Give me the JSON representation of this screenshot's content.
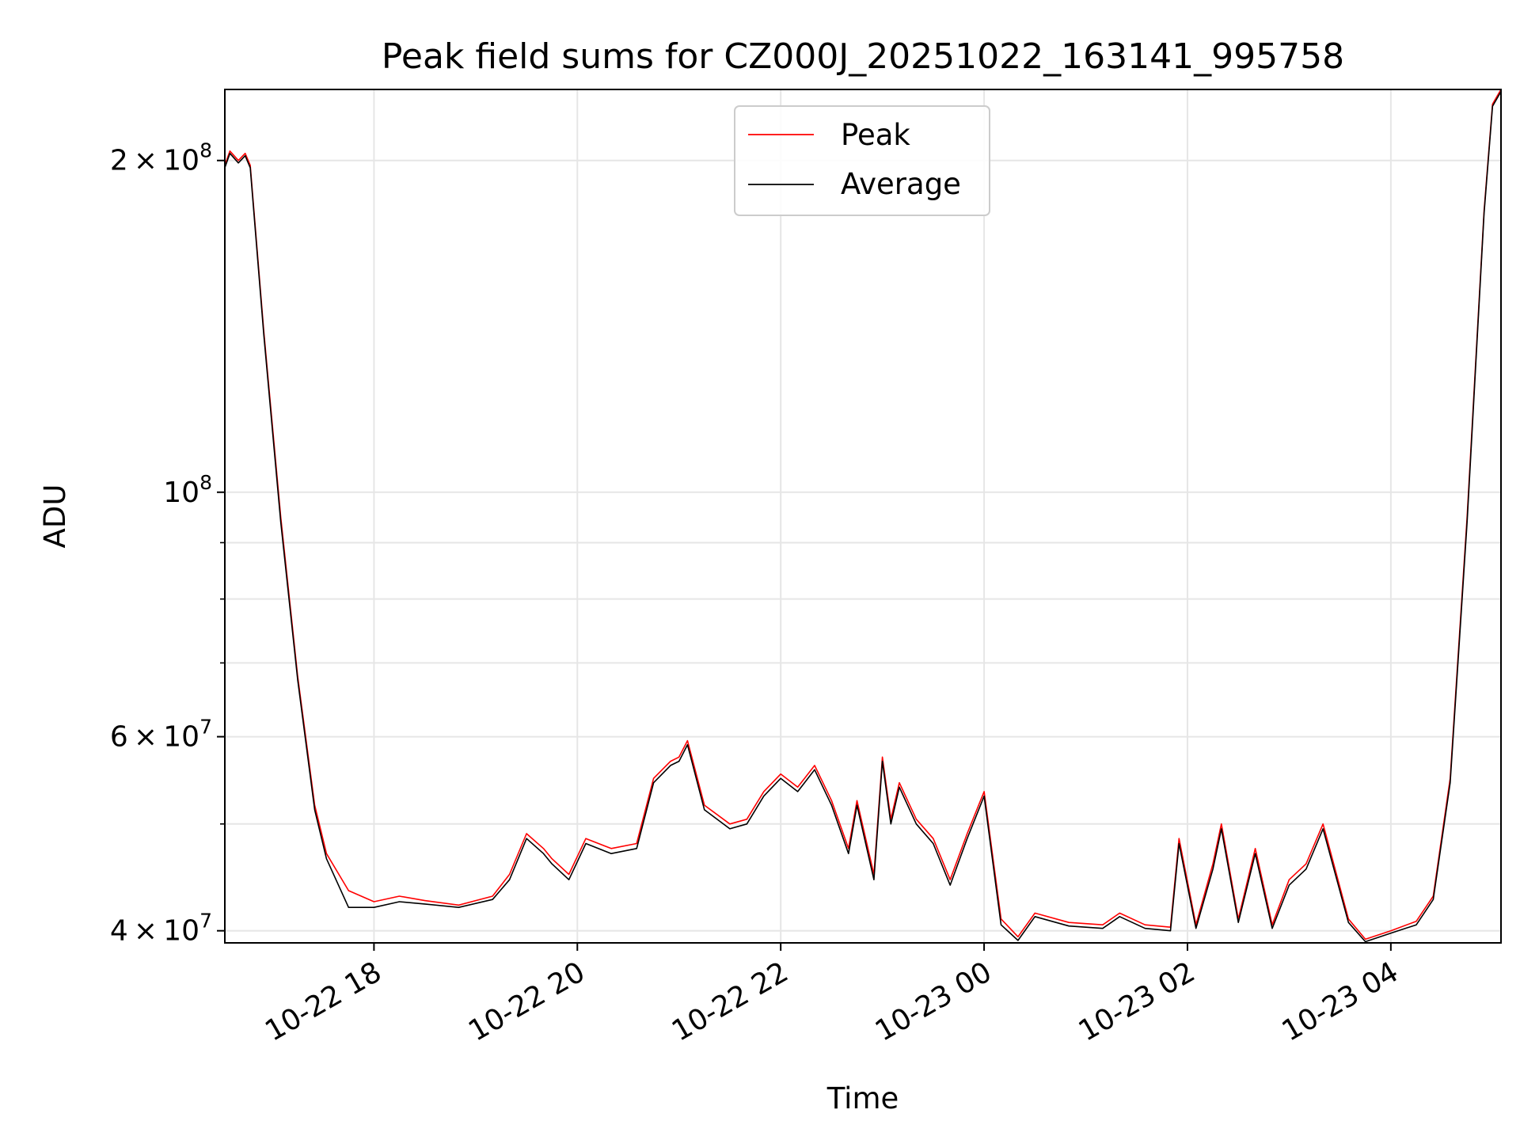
{
  "chart_data": {
    "type": "line",
    "title": "Peak field sums for CZ000J_20251022_163141_995758",
    "xlabel": "Time",
    "ylabel": "ADU",
    "yscale": "log",
    "xlim": [
      "2025-10-22 16:32",
      "2025-10-23 05:05"
    ],
    "ylim": [
      39000000,
      232000000
    ],
    "x_ticks": [
      "10-22 18",
      "10-22 20",
      "10-22 22",
      "10-23 00",
      "10-23 02",
      "10-23 04"
    ],
    "y_ticks": [
      {
        "value": 40000000,
        "base": "4",
        "exp": "7"
      },
      {
        "value": 60000000,
        "base": "6",
        "exp": "7"
      },
      {
        "value": 100000000,
        "base": "",
        "exp": "8"
      },
      {
        "value": 200000000,
        "base": "2",
        "exp": "8"
      }
    ],
    "grid": true,
    "legend_position": "top-center",
    "colors": {
      "peak": "#ff0000",
      "average": "#000000"
    },
    "series": [
      {
        "name": "Peak",
        "color": "#ff0000",
        "points": [
          [
            "2025-10-22 16:32",
            198000000
          ],
          [
            "2025-10-22 16:35",
            204000000
          ],
          [
            "2025-10-22 16:40",
            200000000
          ],
          [
            "2025-10-22 16:44",
            203000000
          ],
          [
            "2025-10-22 16:47",
            198000000
          ],
          [
            "2025-10-22 16:55",
            140000000
          ],
          [
            "2025-10-22 17:05",
            95000000
          ],
          [
            "2025-10-22 17:15",
            68000000
          ],
          [
            "2025-10-22 17:25",
            52000000
          ],
          [
            "2025-10-22 17:32",
            47000000
          ],
          [
            "2025-10-22 17:45",
            43500000
          ],
          [
            "2025-10-22 18:00",
            42500000
          ],
          [
            "2025-10-22 18:15",
            43000000
          ],
          [
            "2025-10-22 18:30",
            42600000
          ],
          [
            "2025-10-22 18:50",
            42200000
          ],
          [
            "2025-10-22 19:10",
            43000000
          ],
          [
            "2025-10-22 19:20",
            45000000
          ],
          [
            "2025-10-22 19:30",
            49000000
          ],
          [
            "2025-10-22 19:40",
            47500000
          ],
          [
            "2025-10-22 19:45",
            46500000
          ],
          [
            "2025-10-22 19:55",
            45000000
          ],
          [
            "2025-10-22 20:05",
            48500000
          ],
          [
            "2025-10-22 20:20",
            47500000
          ],
          [
            "2025-10-22 20:35",
            48000000
          ],
          [
            "2025-10-22 20:45",
            55000000
          ],
          [
            "2025-10-22 20:55",
            57000000
          ],
          [
            "2025-10-22 21:00",
            57500000
          ],
          [
            "2025-10-22 21:05",
            59500000
          ],
          [
            "2025-10-22 21:15",
            52000000
          ],
          [
            "2025-10-22 21:30",
            50000000
          ],
          [
            "2025-10-22 21:40",
            50500000
          ],
          [
            "2025-10-22 21:50",
            53500000
          ],
          [
            "2025-10-22 22:00",
            55500000
          ],
          [
            "2025-10-22 22:10",
            54000000
          ],
          [
            "2025-10-22 22:20",
            56500000
          ],
          [
            "2025-10-22 22:30",
            52500000
          ],
          [
            "2025-10-22 22:40",
            47500000
          ],
          [
            "2025-10-22 22:45",
            52500000
          ],
          [
            "2025-10-22 22:55",
            45000000
          ],
          [
            "2025-10-22 23:00",
            57500000
          ],
          [
            "2025-10-22 23:05",
            50500000
          ],
          [
            "2025-10-22 23:10",
            54500000
          ],
          [
            "2025-10-22 23:20",
            50500000
          ],
          [
            "2025-10-22 23:30",
            48500000
          ],
          [
            "2025-10-22 23:40",
            44500000
          ],
          [
            "2025-10-22 23:50",
            49000000
          ],
          [
            "2025-10-23 00:00",
            53500000
          ],
          [
            "2025-10-23 00:10",
            41000000
          ],
          [
            "2025-10-23 00:20",
            39500000
          ],
          [
            "2025-10-23 00:30",
            41500000
          ],
          [
            "2025-10-23 00:50",
            40700000
          ],
          [
            "2025-10-23 01:10",
            40500000
          ],
          [
            "2025-10-23 01:20",
            41500000
          ],
          [
            "2025-10-23 01:35",
            40500000
          ],
          [
            "2025-10-23 01:50",
            40300000
          ],
          [
            "2025-10-23 01:55",
            48500000
          ],
          [
            "2025-10-23 02:05",
            40500000
          ],
          [
            "2025-10-23 02:15",
            46000000
          ],
          [
            "2025-10-23 02:20",
            50000000
          ],
          [
            "2025-10-23 02:30",
            41000000
          ],
          [
            "2025-10-23 02:40",
            47500000
          ],
          [
            "2025-10-23 02:50",
            40500000
          ],
          [
            "2025-10-23 03:00",
            44500000
          ],
          [
            "2025-10-23 03:10",
            46000000
          ],
          [
            "2025-10-23 03:20",
            50000000
          ],
          [
            "2025-10-23 03:35",
            41000000
          ],
          [
            "2025-10-23 03:45",
            39300000
          ],
          [
            "2025-10-23 04:00",
            40000000
          ],
          [
            "2025-10-23 04:15",
            40800000
          ],
          [
            "2025-10-23 04:25",
            43000000
          ],
          [
            "2025-10-23 04:35",
            55000000
          ],
          [
            "2025-10-23 04:45",
            95000000
          ],
          [
            "2025-10-23 04:55",
            180000000
          ],
          [
            "2025-10-23 05:00",
            225000000
          ],
          [
            "2025-10-23 05:05",
            232000000
          ]
        ]
      },
      {
        "name": "Average",
        "color": "#000000",
        "points": [
          [
            "2025-10-22 16:32",
            197000000
          ],
          [
            "2025-10-22 16:35",
            203000000
          ],
          [
            "2025-10-22 16:40",
            199000000
          ],
          [
            "2025-10-22 16:44",
            202000000
          ],
          [
            "2025-10-22 16:47",
            197000000
          ],
          [
            "2025-10-22 16:55",
            139000000
          ],
          [
            "2025-10-22 17:05",
            94000000
          ],
          [
            "2025-10-22 17:15",
            67500000
          ],
          [
            "2025-10-22 17:25",
            51500000
          ],
          [
            "2025-10-22 17:32",
            46500000
          ],
          [
            "2025-10-22 17:45",
            42000000
          ],
          [
            "2025-10-22 18:00",
            42000000
          ],
          [
            "2025-10-22 18:15",
            42500000
          ],
          [
            "2025-10-22 18:30",
            42300000
          ],
          [
            "2025-10-22 18:50",
            42000000
          ],
          [
            "2025-10-22 19:10",
            42700000
          ],
          [
            "2025-10-22 19:20",
            44500000
          ],
          [
            "2025-10-22 19:30",
            48500000
          ],
          [
            "2025-10-22 19:40",
            47000000
          ],
          [
            "2025-10-22 19:45",
            46000000
          ],
          [
            "2025-10-22 19:55",
            44500000
          ],
          [
            "2025-10-22 20:05",
            48000000
          ],
          [
            "2025-10-22 20:20",
            47000000
          ],
          [
            "2025-10-22 20:35",
            47500000
          ],
          [
            "2025-10-22 20:45",
            54500000
          ],
          [
            "2025-10-22 20:55",
            56500000
          ],
          [
            "2025-10-22 21:00",
            57000000
          ],
          [
            "2025-10-22 21:05",
            59000000
          ],
          [
            "2025-10-22 21:15",
            51500000
          ],
          [
            "2025-10-22 21:30",
            49500000
          ],
          [
            "2025-10-22 21:40",
            50000000
          ],
          [
            "2025-10-22 21:50",
            53000000
          ],
          [
            "2025-10-22 22:00",
            55000000
          ],
          [
            "2025-10-22 22:10",
            53500000
          ],
          [
            "2025-10-22 22:20",
            56000000
          ],
          [
            "2025-10-22 22:30",
            52000000
          ],
          [
            "2025-10-22 22:40",
            47000000
          ],
          [
            "2025-10-22 22:45",
            52000000
          ],
          [
            "2025-10-22 22:55",
            44500000
          ],
          [
            "2025-10-22 23:00",
            57000000
          ],
          [
            "2025-10-22 23:05",
            50000000
          ],
          [
            "2025-10-22 23:10",
            54000000
          ],
          [
            "2025-10-22 23:20",
            50000000
          ],
          [
            "2025-10-22 23:30",
            48000000
          ],
          [
            "2025-10-22 23:40",
            44000000
          ],
          [
            "2025-10-22 23:50",
            48500000
          ],
          [
            "2025-10-23 00:00",
            53000000
          ],
          [
            "2025-10-23 00:10",
            40500000
          ],
          [
            "2025-10-23 00:20",
            39200000
          ],
          [
            "2025-10-23 00:30",
            41200000
          ],
          [
            "2025-10-23 00:50",
            40400000
          ],
          [
            "2025-10-23 01:10",
            40200000
          ],
          [
            "2025-10-23 01:20",
            41200000
          ],
          [
            "2025-10-23 01:35",
            40200000
          ],
          [
            "2025-10-23 01:50",
            40000000
          ],
          [
            "2025-10-23 01:55",
            48000000
          ],
          [
            "2025-10-23 02:05",
            40200000
          ],
          [
            "2025-10-23 02:15",
            45500000
          ],
          [
            "2025-10-23 02:20",
            49500000
          ],
          [
            "2025-10-23 02:30",
            40700000
          ],
          [
            "2025-10-23 02:40",
            47000000
          ],
          [
            "2025-10-23 02:50",
            40200000
          ],
          [
            "2025-10-23 03:00",
            44000000
          ],
          [
            "2025-10-23 03:10",
            45500000
          ],
          [
            "2025-10-23 03:20",
            49500000
          ],
          [
            "2025-10-23 03:35",
            40700000
          ],
          [
            "2025-10-23 03:45",
            39100000
          ],
          [
            "2025-10-23 04:00",
            39800000
          ],
          [
            "2025-10-23 04:15",
            40500000
          ],
          [
            "2025-10-23 04:25",
            42700000
          ],
          [
            "2025-10-23 04:35",
            54500000
          ],
          [
            "2025-10-23 04:45",
            94000000
          ],
          [
            "2025-10-23 04:55",
            179000000
          ],
          [
            "2025-10-23 05:00",
            224000000
          ],
          [
            "2025-10-23 05:05",
            231000000
          ]
        ]
      }
    ]
  }
}
